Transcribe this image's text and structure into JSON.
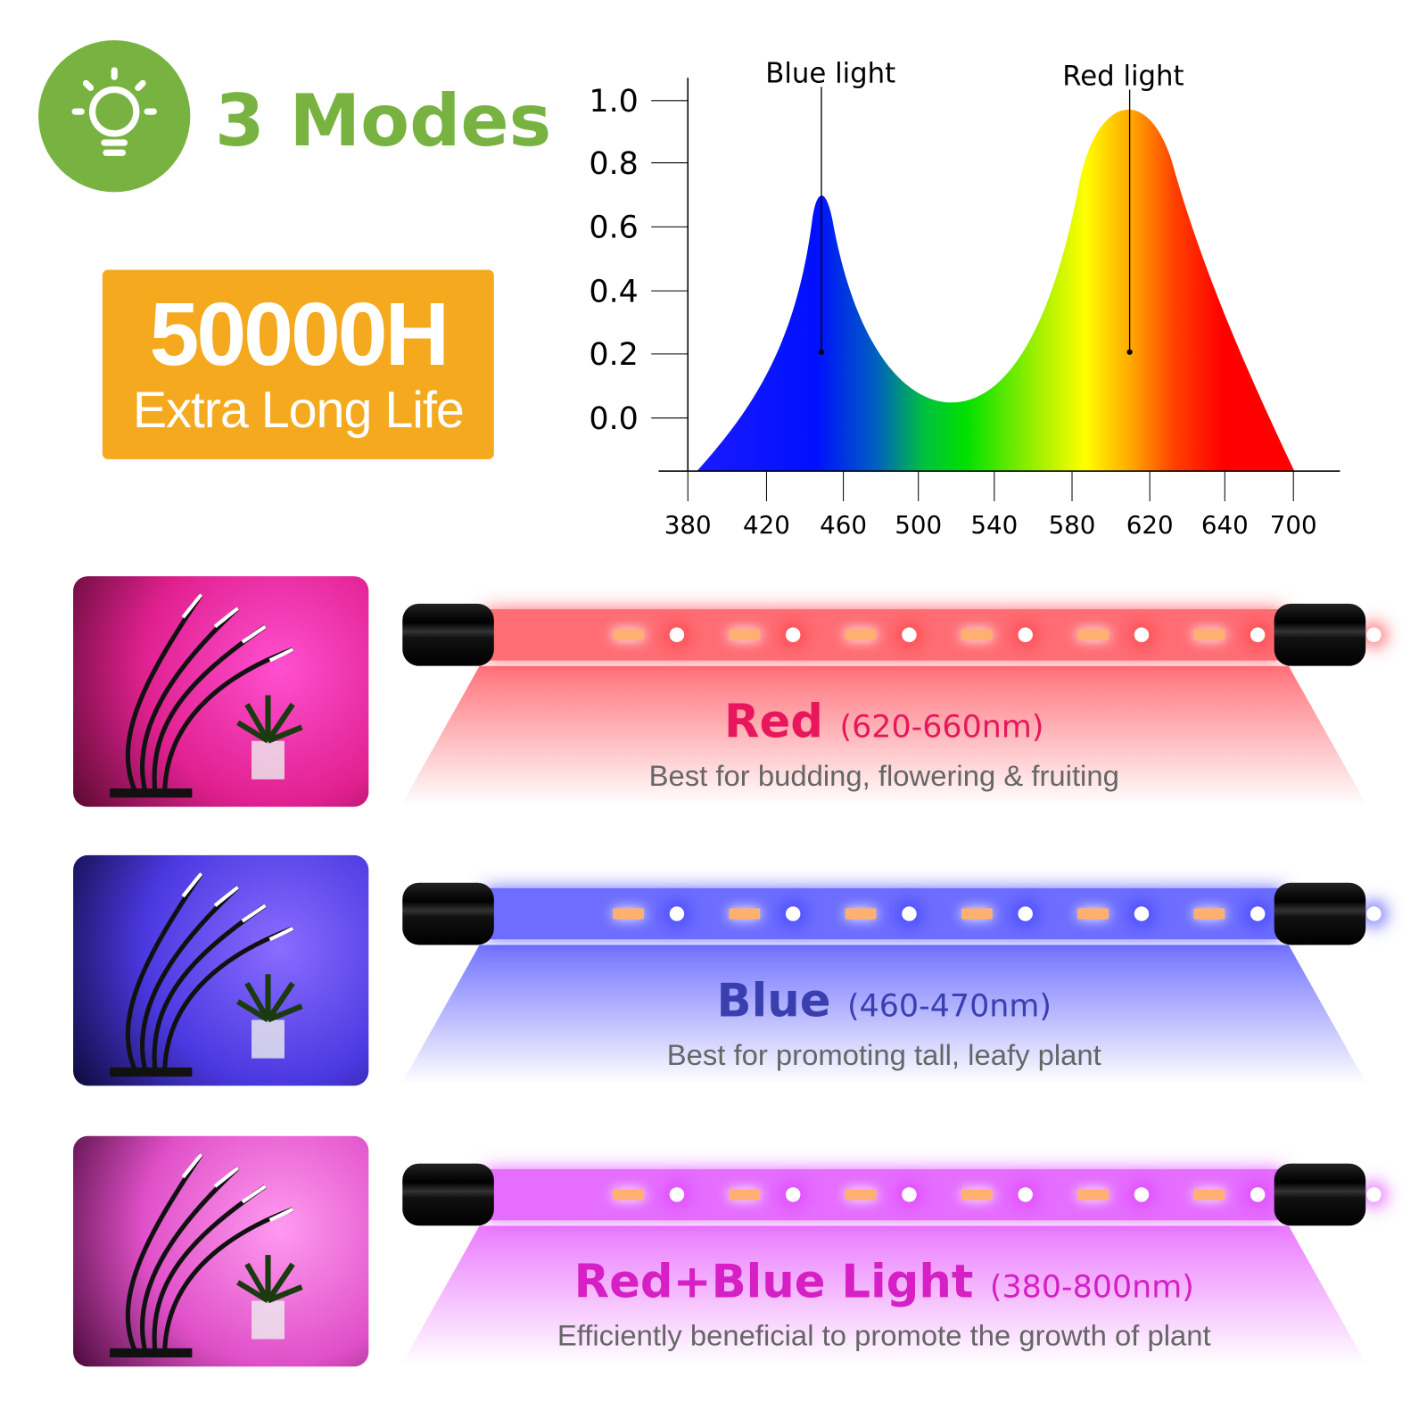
{
  "header": {
    "icon": "light-bulb-icon",
    "modes_title": "3 Modes",
    "accent_color": "#78b341"
  },
  "lifetime": {
    "hours": "50000H",
    "subtitle": "Extra Long Life",
    "color": "#f4a91f"
  },
  "spectrum": {
    "y_ticks": [
      "1.0",
      "0.8",
      "0.6",
      "0.4",
      "0.2",
      "0.0"
    ],
    "x_ticks": [
      "380",
      "420",
      "460",
      "500",
      "540",
      "580",
      "620",
      "640",
      "700"
    ],
    "annotations": {
      "blue": "Blue light",
      "red": "Red light"
    }
  },
  "modes": [
    {
      "name": "Red",
      "range": "(620-660nm)",
      "description": "Best for budding, flowering & fruiting",
      "color": "#e8175d"
    },
    {
      "name": "Blue",
      "range": "(460-470nm)",
      "description": "Best for promoting tall, leafy plant",
      "color": "#3a3fb0"
    },
    {
      "name": "Red+Blue Light",
      "range": "(380-800nm)",
      "description": "Efficiently beneficial to promote the growth of plant",
      "color": "#d61fc4"
    }
  ]
}
